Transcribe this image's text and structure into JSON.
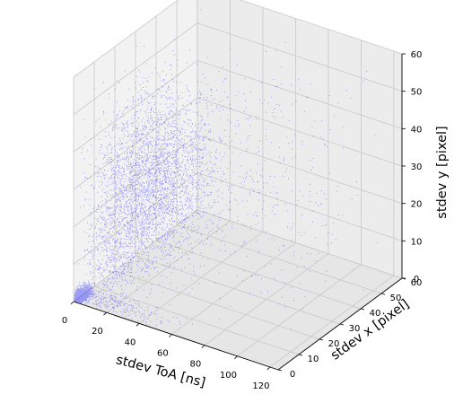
{
  "chart_data": {
    "type": "scatter",
    "projection": "3d",
    "title": "",
    "xlabel": "stdev ToA [ns]",
    "ylabel": "stdev x [pixel]",
    "zlabel": "stdev y [pixel]",
    "xlim": [
      0,
      125
    ],
    "ylim": [
      0,
      60
    ],
    "zlim": [
      0,
      60
    ],
    "xticks": [
      0,
      20,
      40,
      60,
      80,
      100,
      120
    ],
    "yticks": [
      0,
      10,
      20,
      30,
      40,
      50,
      60
    ],
    "zticks": [
      0,
      10,
      20,
      30,
      40,
      50,
      60
    ],
    "grid": true,
    "marker_color": "#0000ff",
    "series": [
      {
        "clusters": [
          {
            "center": [
              1,
              2,
              1
            ],
            "spread": [
              2,
              2,
              1
            ],
            "count": 1400,
            "note_shape": "dense-corner"
          },
          {
            "center": [
              20,
              20,
              27
            ],
            "spread": [
              14,
              11,
              11
            ],
            "count": 3600
          },
          {
            "center": [
              10,
              12,
              8
            ],
            "spread": [
              9,
              8,
              9
            ],
            "count": 900
          },
          {
            "center": [
              12,
              3,
              1
            ],
            "spread": [
              20,
              2,
              1.2
            ],
            "count": 500
          },
          {
            "center": [
              60,
              30,
              30
            ],
            "spread": [
              35,
              18,
              18
            ],
            "count": 700
          }
        ]
      }
    ]
  }
}
